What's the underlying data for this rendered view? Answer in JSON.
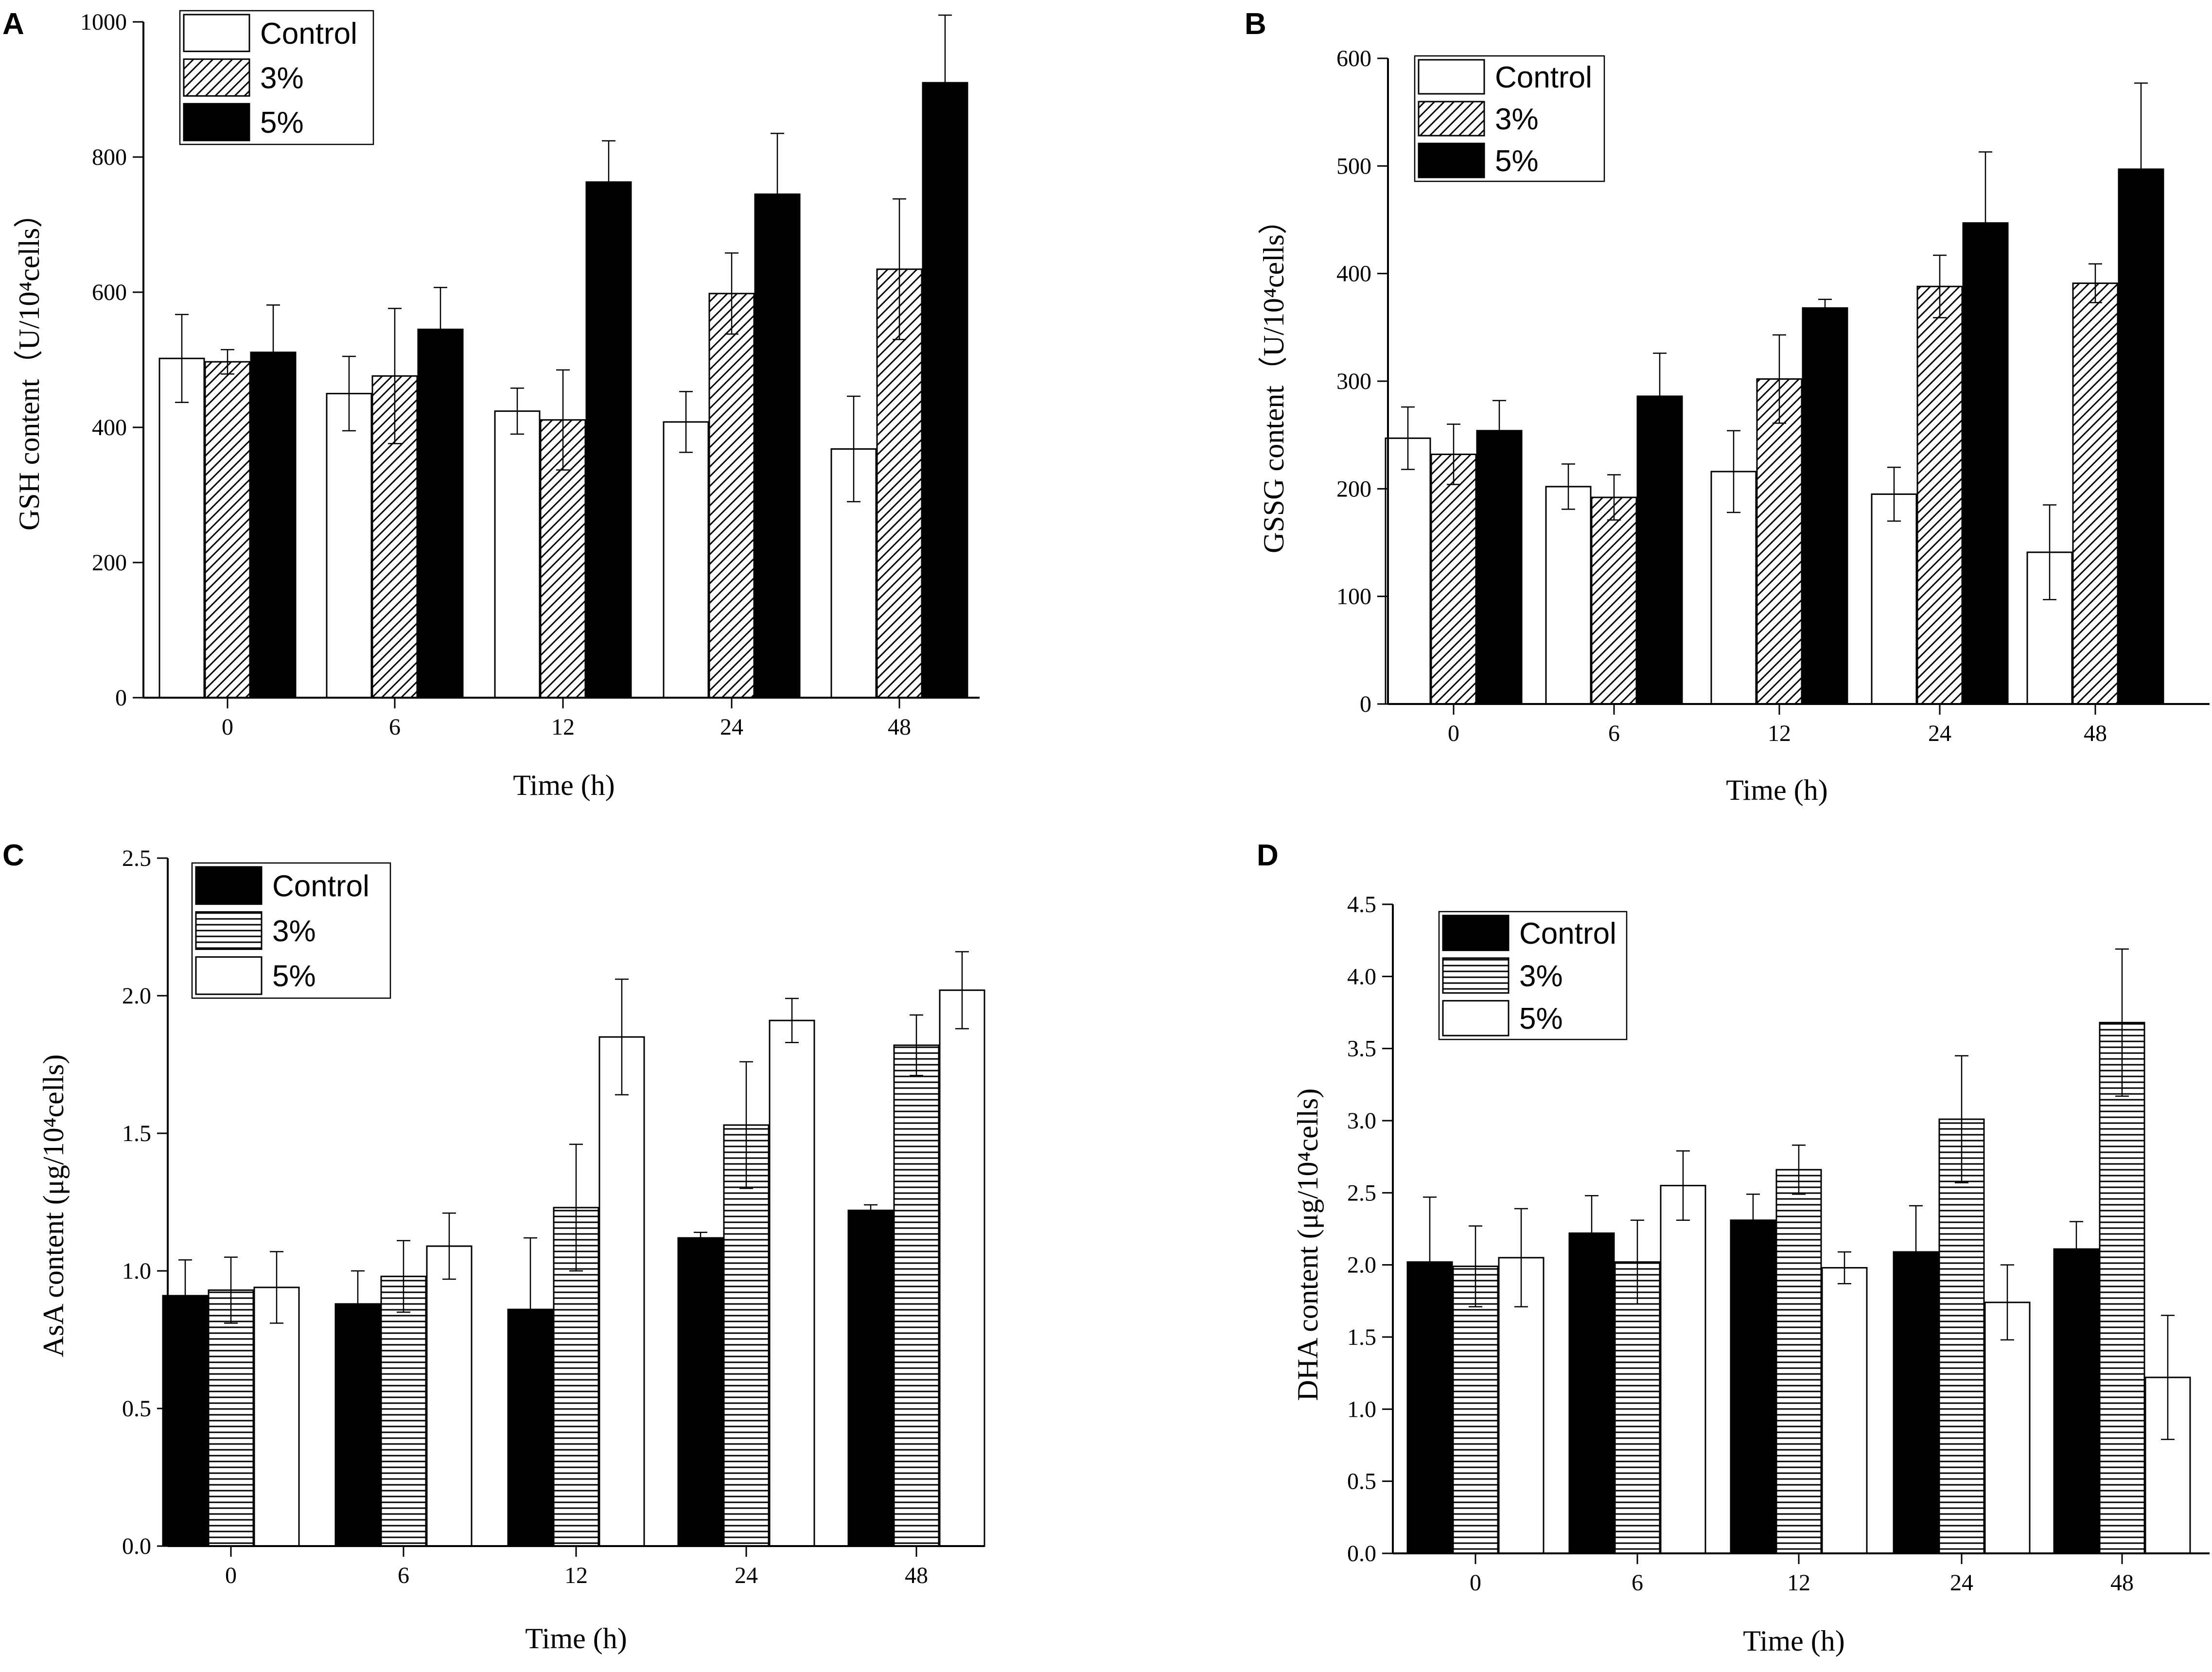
{
  "figure": {
    "colors": {
      "ink": "#000000",
      "paper": "#ffffff"
    },
    "series_names": [
      "Control",
      "3%",
      "5%"
    ]
  },
  "chart_data": [
    {
      "panel": "A",
      "type": "bar",
      "xlabel": "Time (h)",
      "ylabel": "GSH content（U/10⁴cells）",
      "categories": [
        "0",
        "6",
        "12",
        "24",
        "48"
      ],
      "ylim": [
        0,
        1000
      ],
      "yticks": [
        0,
        200,
        400,
        600,
        800,
        1000
      ],
      "ytick_labels": [
        "0",
        "200",
        "400",
        "600",
        "800",
        "1000"
      ],
      "legend": [
        "Control",
        "3%",
        "5%"
      ],
      "series": [
        {
          "name": "Control",
          "fill": "white",
          "values": [
            502,
            450,
            424,
            408,
            368
          ],
          "errors": [
            65,
            55,
            34,
            45,
            78
          ]
        },
        {
          "name": "3%",
          "fill": "diagonal",
          "values": [
            497,
            476,
            411,
            598,
            634
          ],
          "errors": [
            18,
            100,
            74,
            60,
            104
          ]
        },
        {
          "name": "5%",
          "fill": "black",
          "values": [
            511,
            545,
            763,
            745,
            910
          ],
          "errors": [
            70,
            62,
            61,
            90,
            100
          ]
        }
      ]
    },
    {
      "panel": "B",
      "type": "bar",
      "xlabel": "Time (h)",
      "ylabel": "GSSG content（U/10⁴cells）",
      "categories": [
        "0",
        "6",
        "12",
        "24",
        "48"
      ],
      "ylim": [
        0,
        600
      ],
      "yticks": [
        0,
        100,
        200,
        300,
        400,
        500,
        600
      ],
      "ytick_labels": [
        "0",
        "100",
        "200",
        "300",
        "400",
        "500",
        "600"
      ],
      "legend": [
        "Control",
        "3%",
        "5%"
      ],
      "series": [
        {
          "name": "Control",
          "fill": "white",
          "values": [
            247,
            202,
            216,
            195,
            141
          ],
          "errors": [
            29,
            21,
            38,
            25,
            44
          ]
        },
        {
          "name": "3%",
          "fill": "diagonal",
          "values": [
            232,
            192,
            302,
            388,
            391
          ],
          "errors": [
            28,
            21,
            41,
            29,
            18
          ]
        },
        {
          "name": "5%",
          "fill": "black",
          "values": [
            254,
            286,
            368,
            447,
            497
          ],
          "errors": [
            28,
            40,
            8,
            66,
            80
          ]
        }
      ]
    },
    {
      "panel": "C",
      "type": "bar",
      "xlabel": "Time (h)",
      "ylabel": "AsA content (μg/10⁴cells)",
      "categories": [
        "0",
        "6",
        "12",
        "24",
        "48"
      ],
      "ylim": [
        0,
        2.5
      ],
      "yticks": [
        0,
        0.5,
        1,
        1.5,
        2,
        2.5
      ],
      "ytick_labels": [
        "0.0",
        "0.5",
        "1.0",
        "1.5",
        "2.0",
        "2.5"
      ],
      "legend": [
        "Control",
        "3%",
        "5%"
      ],
      "series": [
        {
          "name": "Control",
          "fill": "black",
          "values": [
            0.91,
            0.88,
            0.86,
            1.12,
            1.22
          ],
          "errors": [
            0.13,
            0.12,
            0.26,
            0.02,
            0.02
          ]
        },
        {
          "name": "3%",
          "fill": "horizontal",
          "values": [
            0.93,
            0.98,
            1.23,
            1.53,
            1.82
          ],
          "errors": [
            0.12,
            0.13,
            0.23,
            0.23,
            0.11
          ]
        },
        {
          "name": "5%",
          "fill": "white",
          "values": [
            0.94,
            1.09,
            1.85,
            1.91,
            2.02
          ],
          "errors": [
            0.13,
            0.12,
            0.21,
            0.08,
            0.14
          ]
        }
      ]
    },
    {
      "panel": "D",
      "type": "bar",
      "xlabel": "Time (h)",
      "ylabel": "DHA content (μg/10⁴cells)",
      "categories": [
        "0",
        "6",
        "12",
        "24",
        "48"
      ],
      "ylim": [
        0,
        4.5
      ],
      "yticks": [
        0,
        0.5,
        1,
        1.5,
        2,
        2.5,
        3,
        3.5,
        4,
        4.5
      ],
      "ytick_labels": [
        "0.0",
        "0.5",
        "1.0",
        "1.5",
        "2.0",
        "2.5",
        "3.0",
        "3.5",
        "4.0",
        "4.5"
      ],
      "legend": [
        "Control",
        "3%",
        "5%"
      ],
      "series": [
        {
          "name": "Control",
          "fill": "black",
          "values": [
            2.02,
            2.22,
            2.31,
            2.09,
            2.11
          ],
          "errors": [
            0.45,
            0.26,
            0.18,
            0.32,
            0.19
          ]
        },
        {
          "name": "3%",
          "fill": "horizontal",
          "values": [
            1.99,
            2.02,
            2.66,
            3.01,
            3.68
          ],
          "errors": [
            0.28,
            0.29,
            0.17,
            0.44,
            0.51
          ]
        },
        {
          "name": "5%",
          "fill": "white",
          "values": [
            2.05,
            2.55,
            1.98,
            1.74,
            1.22
          ],
          "errors": [
            0.34,
            0.24,
            0.11,
            0.26,
            0.43
          ]
        }
      ]
    }
  ]
}
